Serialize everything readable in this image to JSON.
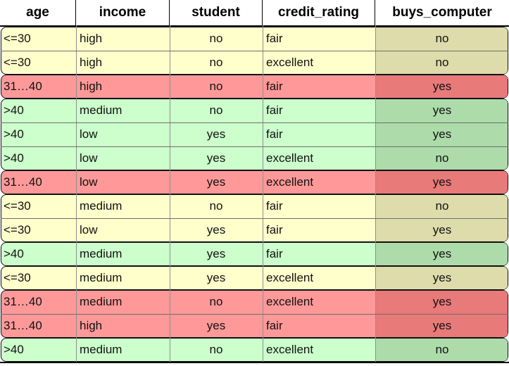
{
  "columns": [
    "age",
    "income",
    "student",
    "credit_rating",
    "buys_computer"
  ],
  "rows": [
    {
      "age": "<=30",
      "income": "high",
      "student": "no",
      "credit_rating": "fair",
      "buys_computer": "no"
    },
    {
      "age": "<=30",
      "income": "high",
      "student": "no",
      "credit_rating": "excellent",
      "buys_computer": "no"
    },
    {
      "age": "31…40",
      "income": "high",
      "student": "no",
      "credit_rating": "fair",
      "buys_computer": "yes"
    },
    {
      "age": ">40",
      "income": "medium",
      "student": "no",
      "credit_rating": "fair",
      "buys_computer": "yes"
    },
    {
      "age": ">40",
      "income": "low",
      "student": "yes",
      "credit_rating": "fair",
      "buys_computer": "yes"
    },
    {
      "age": ">40",
      "income": "low",
      "student": "yes",
      "credit_rating": "excellent",
      "buys_computer": "no"
    },
    {
      "age": "31…40",
      "income": "low",
      "student": "yes",
      "credit_rating": "excellent",
      "buys_computer": "yes"
    },
    {
      "age": "<=30",
      "income": "medium",
      "student": "no",
      "credit_rating": "fair",
      "buys_computer": "no"
    },
    {
      "age": "<=30",
      "income": "low",
      "student": "yes",
      "credit_rating": "fair",
      "buys_computer": "yes"
    },
    {
      "age": ">40",
      "income": "medium",
      "student": "yes",
      "credit_rating": "fair",
      "buys_computer": "yes"
    },
    {
      "age": "<=30",
      "income": "medium",
      "student": "yes",
      "credit_rating": "excellent",
      "buys_computer": "yes"
    },
    {
      "age": "31…40",
      "income": "medium",
      "student": "no",
      "credit_rating": "excellent",
      "buys_computer": "yes"
    },
    {
      "age": "31…40",
      "income": "high",
      "student": "yes",
      "credit_rating": "fair",
      "buys_computer": "yes"
    },
    {
      "age": ">40",
      "income": "medium",
      "student": "no",
      "credit_rating": "excellent",
      "buys_computer": "no"
    }
  ],
  "colors": {
    "<=30": "#ffffcc",
    ">40": "#ccffcc",
    "31…40": "#ff9999"
  }
}
